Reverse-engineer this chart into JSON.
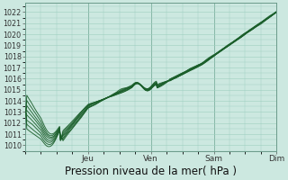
{
  "title": "Pression niveau de la mer( hPa )",
  "bg_color": "#cce8e0",
  "plot_bg_color": "#cce8e0",
  "grid_color": "#9ecfbf",
  "line_color": "#1a5e2a",
  "ylim": [
    1009.5,
    1022.8
  ],
  "yticks": [
    1010,
    1011,
    1012,
    1013,
    1014,
    1015,
    1016,
    1017,
    1018,
    1019,
    1020,
    1021,
    1022
  ],
  "title_fontsize": 8.5,
  "n_lines": 8
}
